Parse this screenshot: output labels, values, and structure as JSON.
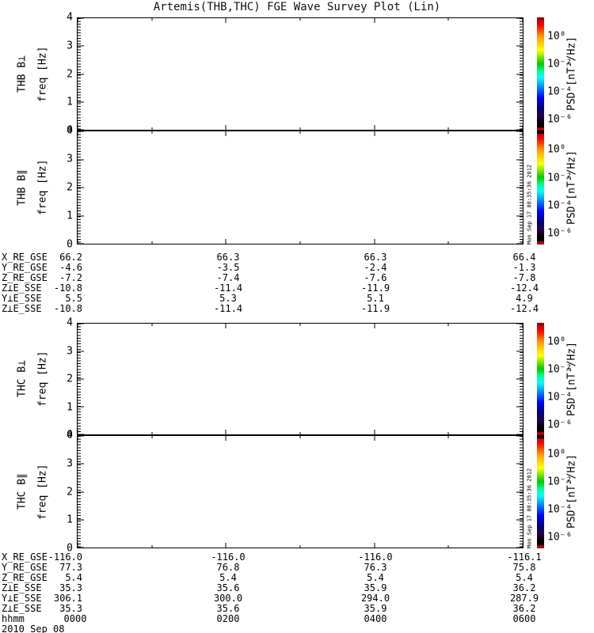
{
  "title": "Artemis(THB,THC) FGE Wave Survey Plot (Lin)",
  "timestamp": "Mon Sep 17 08:35:36 2012",
  "ytick_labels": [
    "4",
    "3",
    "2",
    "1",
    "0"
  ],
  "colorbar": {
    "label": "PSD [nT²/Hz]",
    "ticks": [
      "10⁰",
      "10⁻²",
      "10⁻⁴",
      "10⁻⁶"
    ],
    "gradient_stops": [
      "#780000 0%",
      "#c80000 3%",
      "#ff0000 7%",
      "#ff9b00 17%",
      "#ffff00 29%",
      "#00c800 41%",
      "#00ff9b 48%",
      "#00ffff 53%",
      "#0082ff 62%",
      "#0000ff 71%",
      "#000082 80%",
      "#28004e 87%",
      "#0a0005 92%",
      "#000000 97%",
      "#c80000 97.6%",
      "#960000 100%"
    ]
  },
  "chart_data": {
    "type": "heatmap",
    "title": "Artemis(THB,THC) FGE Wave Survey Plot (Lin)",
    "x": {
      "label": "hhmm",
      "ticks": [
        "0000",
        "0200",
        "0400",
        "0600"
      ],
      "minor_ticks": [
        "0100",
        "0300",
        "0500"
      ],
      "date": "2010 Sep 08"
    },
    "panels": [
      {
        "name": "THB B⊥",
        "ylabel": "freq [Hz]",
        "ylim": [
          0,
          4
        ],
        "yticks": [
          0,
          1,
          2,
          3,
          4
        ],
        "colorbar_label": "PSD [nT²/Hz]",
        "colorbar_tick_values": [
          1,
          0.01,
          0.0001,
          1e-06
        ],
        "values": "blank - no spectral data rendered"
      },
      {
        "name": "THB B∥",
        "ylabel": "freq [Hz]",
        "ylim": [
          0,
          4
        ],
        "yticks": [
          0,
          1,
          2,
          3,
          4
        ],
        "colorbar_label": "PSD [nT²/Hz]",
        "colorbar_tick_values": [
          1,
          0.01,
          0.0001,
          1e-06
        ],
        "values": "blank - no spectral data rendered"
      },
      {
        "name": "THC B⊥",
        "ylabel": "freq [Hz]",
        "ylim": [
          0,
          4
        ],
        "yticks": [
          0,
          1,
          2,
          3,
          4
        ],
        "colorbar_label": "PSD [nT²/Hz]",
        "colorbar_tick_values": [
          1,
          0.01,
          0.0001,
          1e-06
        ],
        "values": "blank - no spectral data rendered"
      },
      {
        "name": "THC B∥",
        "ylabel": "freq [Hz]",
        "ylim": [
          0,
          4
        ],
        "yticks": [
          0,
          1,
          2,
          3,
          4
        ],
        "colorbar_label": "PSD [nT²/Hz]",
        "colorbar_tick_values": [
          1,
          0.01,
          0.0001,
          1e-06
        ],
        "values": "blank - no spectral data rendered"
      }
    ],
    "ephemeris": {
      "thb": {
        "columns": [
          "0000",
          "0200",
          "0400",
          "0600"
        ],
        "rows": [
          {
            "label": "X_RE_GSE",
            "values": [
              "66.2",
              "66.3",
              "66.3",
              "66.4"
            ]
          },
          {
            "label": "Y_RE_GSE",
            "values": [
              "-4.6",
              "-3.5",
              "-2.4",
              "-1.3"
            ]
          },
          {
            "label": "Z_RE_GSE",
            "values": [
              "-7.2",
              "-7.4",
              "-7.6",
              "-7.8"
            ]
          },
          {
            "label": "Z⊥E_SSE",
            "values": [
              "-10.8",
              "-11.4",
              "-11.9",
              "-12.4"
            ]
          },
          {
            "label": "Y⊥E_SSE",
            "values": [
              "5.5",
              "5.3",
              "5.1",
              "4.9"
            ]
          },
          {
            "label": "Z⊥E_SSE",
            "values": [
              "-10.8",
              "-11.4",
              "-11.9",
              "-12.4"
            ]
          }
        ]
      },
      "thc": {
        "columns": [
          "0000",
          "0200",
          "0400",
          "0600"
        ],
        "rows": [
          {
            "label": "X_RE_GSE",
            "values": [
              "-116.0",
              "-116.0",
              "-116.0",
              "-116.1"
            ]
          },
          {
            "label": "Y_RE_GSE",
            "values": [
              "77.3",
              "76.8",
              "76.3",
              "75.8"
            ]
          },
          {
            "label": "Z_RE_GSE",
            "values": [
              "5.4",
              "5.4",
              "5.4",
              "5.4"
            ]
          },
          {
            "label": "Z⊥E_SSE",
            "values": [
              "35.3",
              "35.6",
              "35.9",
              "36.2"
            ]
          },
          {
            "label": "Y⊥E_SSE",
            "values": [
              "306.1",
              "300.0",
              "294.0",
              "287.9"
            ]
          },
          {
            "label": "Z⊥E_SSE",
            "values": [
              "35.3",
              "35.6",
              "35.9",
              "36.2"
            ]
          }
        ],
        "time_row": {
          "label": "hhmm",
          "values": [
            "0000",
            "0200",
            "0400",
            "0600"
          ]
        },
        "date_label": "2010 Sep 08"
      }
    }
  }
}
